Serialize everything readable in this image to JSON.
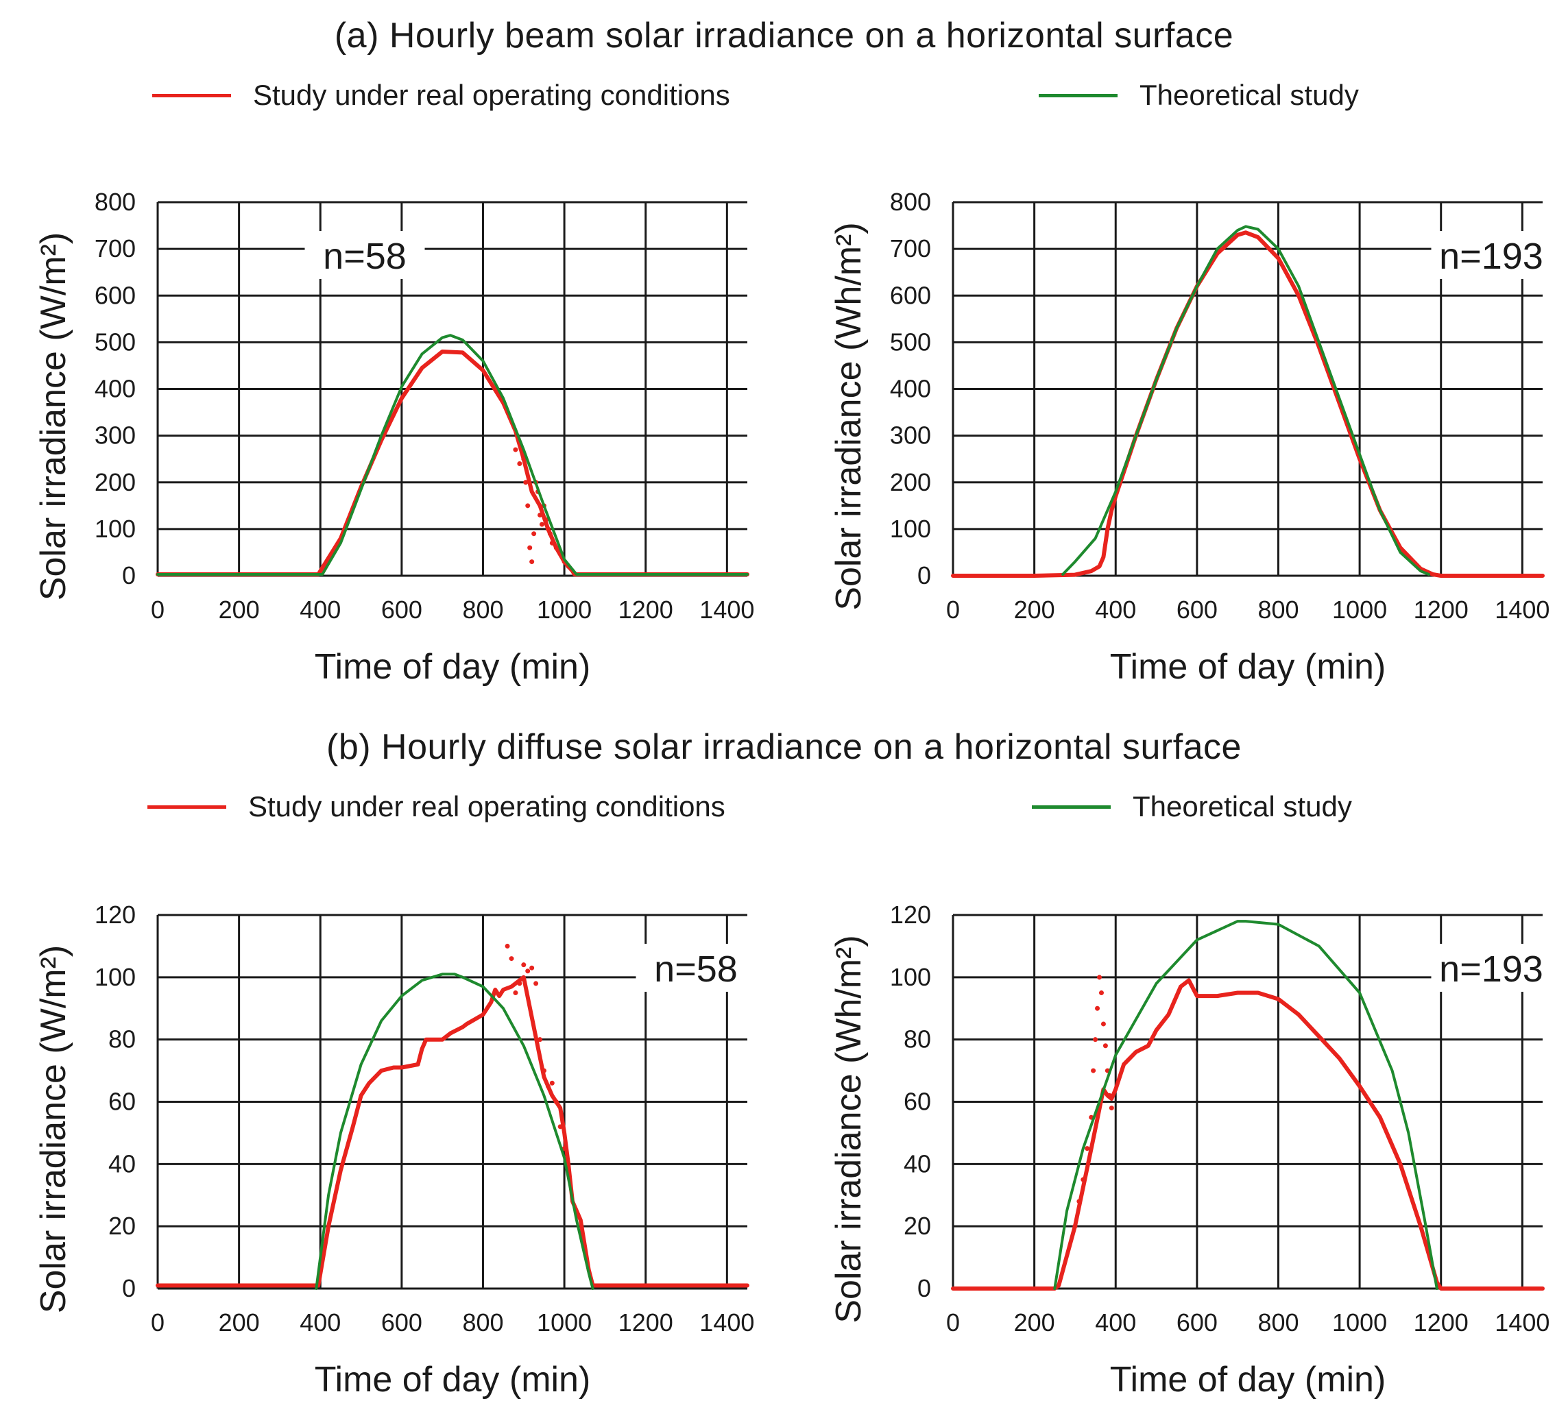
{
  "figure": {
    "section_a_title": "(a) Hourly beam solar irradiance on a horizontal surface",
    "section_b_title": "(b) Hourly diffuse solar irradiance on a horizontal surface",
    "legend_real": "Study under real operating conditions",
    "legend_theoretical": "Theoretical study",
    "colors": {
      "real": "#e8231d",
      "theoretical": "#1e8a2e",
      "grid": "#1a1a1a"
    }
  },
  "chart_data": [
    {
      "id": "a-left",
      "type": "line",
      "title": "",
      "annotation": "n=58",
      "xlabel": "Time of day (min)",
      "ylabel": "Solar irradiance (W/m²)",
      "xlim": [
        0,
        1450
      ],
      "ylim": [
        0,
        800
      ],
      "xticks": [
        0,
        200,
        400,
        600,
        800,
        1000,
        1200,
        1400
      ],
      "yticks": [
        0,
        100,
        200,
        300,
        400,
        500,
        600,
        700,
        800
      ],
      "series": [
        {
          "name": "Study under real operating conditions",
          "style": "real",
          "x": [
            0,
            200,
            395,
            450,
            500,
            550,
            600,
            650,
            700,
            750,
            800,
            850,
            880,
            900,
            920,
            940,
            960,
            980,
            1000,
            1010,
            1020,
            1025,
            1100,
            1200,
            1300,
            1400,
            1450
          ],
          "y": [
            3,
            3,
            3,
            80,
            190,
            290,
            380,
            445,
            480,
            478,
            440,
            370,
            310,
            250,
            180,
            150,
            100,
            60,
            30,
            20,
            10,
            3,
            3,
            3,
            3,
            3,
            3
          ],
          "scatter_x": [
            880,
            890,
            900,
            905,
            910,
            915,
            920,
            925,
            930,
            935,
            940,
            945,
            950,
            955,
            960,
            965,
            970,
            980,
            990,
            1000,
            1010
          ],
          "scatter_y": [
            270,
            240,
            250,
            200,
            150,
            60,
            30,
            90,
            200,
            180,
            130,
            110,
            150,
            120,
            100,
            90,
            70,
            60,
            50,
            30,
            20
          ]
        },
        {
          "name": "Theoretical study",
          "style": "theoretical",
          "x": [
            0,
            200,
            405,
            450,
            500,
            550,
            600,
            650,
            700,
            720,
            750,
            800,
            850,
            900,
            950,
            1000,
            1030,
            1100,
            1200,
            1300,
            1400,
            1450
          ],
          "y": [
            3,
            3,
            3,
            70,
            185,
            300,
            405,
            475,
            510,
            515,
            505,
            460,
            380,
            270,
            150,
            35,
            3,
            3,
            3,
            3,
            3,
            3
          ]
        }
      ]
    },
    {
      "id": "a-right",
      "type": "line",
      "title": "",
      "annotation": "n=193",
      "xlabel": "Time of day (min)",
      "ylabel": "Solar irradiance (Wh/m²)",
      "xlim": [
        0,
        1450
      ],
      "ylim": [
        0,
        800
      ],
      "xticks": [
        0,
        200,
        400,
        600,
        800,
        1000,
        1200,
        1400
      ],
      "yticks": [
        0,
        100,
        200,
        300,
        400,
        500,
        600,
        700,
        800
      ],
      "series": [
        {
          "name": "Study under real operating conditions",
          "style": "real",
          "x": [
            0,
            100,
            200,
            300,
            340,
            360,
            370,
            380,
            390,
            400,
            450,
            500,
            550,
            600,
            650,
            700,
            720,
            750,
            800,
            850,
            900,
            950,
            1000,
            1050,
            1100,
            1150,
            1180,
            1200,
            1300,
            1400,
            1450
          ],
          "y": [
            0,
            0,
            0,
            2,
            10,
            20,
            40,
            100,
            140,
            170,
            300,
            420,
            530,
            620,
            690,
            730,
            735,
            725,
            680,
            600,
            490,
            370,
            250,
            140,
            60,
            15,
            3,
            0,
            0,
            0,
            0
          ]
        },
        {
          "name": "Theoretical study",
          "style": "theoretical",
          "x": [
            270,
            300,
            350,
            400,
            450,
            500,
            550,
            600,
            650,
            700,
            720,
            750,
            800,
            850,
            900,
            950,
            1000,
            1050,
            1100,
            1150,
            1170
          ],
          "y": [
            3,
            30,
            80,
            180,
            300,
            420,
            530,
            620,
            700,
            740,
            748,
            742,
            700,
            620,
            500,
            380,
            260,
            140,
            50,
            10,
            3
          ]
        }
      ]
    },
    {
      "id": "b-left",
      "type": "line",
      "title": "",
      "annotation": "n=58",
      "xlabel": "Time of day (min)",
      "ylabel": "Solar irradiance (W/m²)",
      "xlim": [
        0,
        1450
      ],
      "ylim": [
        0,
        120
      ],
      "xticks": [
        0,
        200,
        400,
        600,
        800,
        1000,
        1200,
        1400
      ],
      "yticks": [
        0,
        20,
        40,
        60,
        80,
        100,
        120
      ],
      "series": [
        {
          "name": "Study under real operating conditions",
          "style": "real",
          "x": [
            0,
            100,
            200,
            300,
            395,
            420,
            450,
            480,
            500,
            520,
            550,
            580,
            600,
            640,
            650,
            660,
            700,
            720,
            750,
            760,
            800,
            820,
            830,
            840,
            850,
            870,
            900,
            950,
            970,
            990,
            1000,
            1010,
            1020,
            1040,
            1060,
            1070,
            1080,
            1100,
            1200,
            1300,
            1400,
            1450
          ],
          "y": [
            1,
            1,
            1,
            1,
            1,
            20,
            38,
            52,
            62,
            66,
            70,
            71,
            71,
            72,
            77,
            80,
            80,
            82,
            84,
            85,
            88,
            92,
            96,
            94,
            96,
            97,
            100,
            68,
            62,
            58,
            50,
            40,
            28,
            22,
            6,
            1,
            1,
            1,
            1,
            1,
            1,
            1
          ],
          "scatter_x": [
            860,
            870,
            880,
            890,
            900,
            910,
            920,
            930,
            940,
            950,
            960,
            970,
            980,
            990,
            1000
          ],
          "scatter_y": [
            110,
            106,
            95,
            98,
            104,
            102,
            103,
            98,
            80,
            70,
            65,
            66,
            60,
            52,
            45
          ]
        },
        {
          "name": "Theoretical study",
          "style": "theoretical",
          "x": [
            390,
            420,
            450,
            500,
            550,
            600,
            650,
            700,
            730,
            750,
            800,
            850,
            900,
            950,
            1000,
            1030,
            1060,
            1070
          ],
          "y": [
            0,
            30,
            50,
            72,
            86,
            94,
            99,
            101,
            101,
            100,
            97,
            90,
            78,
            62,
            42,
            22,
            5,
            0
          ]
        }
      ]
    },
    {
      "id": "b-right",
      "type": "line",
      "title": "",
      "annotation": "n=193",
      "xlabel": "Time of day (min)",
      "ylabel": "Solar irradiance (Wh/m²)",
      "xlim": [
        0,
        1450
      ],
      "ylim": [
        0,
        120
      ],
      "xticks": [
        0,
        200,
        400,
        600,
        800,
        1000,
        1200,
        1400
      ],
      "yticks": [
        0,
        20,
        40,
        60,
        80,
        100,
        120
      ],
      "series": [
        {
          "name": "Study under real operating conditions",
          "style": "real",
          "x": [
            0,
            100,
            200,
            250,
            260,
            300,
            340,
            370,
            380,
            390,
            400,
            420,
            450,
            480,
            500,
            530,
            560,
            580,
            600,
            650,
            700,
            750,
            800,
            850,
            900,
            950,
            1000,
            1050,
            1100,
            1150,
            1190,
            1200,
            1300,
            1400,
            1450
          ],
          "y": [
            0,
            0,
            0,
            0,
            1,
            20,
            45,
            64,
            62,
            61,
            64,
            72,
            76,
            78,
            83,
            88,
            97,
            99,
            94,
            94,
            95,
            95,
            93,
            88,
            81,
            74,
            65,
            55,
            40,
            20,
            2,
            0,
            0,
            0,
            0
          ],
          "scatter_x": [
            300,
            310,
            320,
            330,
            340,
            345,
            350,
            355,
            360,
            365,
            370,
            375,
            380,
            385,
            390
          ],
          "scatter_y": [
            20,
            28,
            35,
            45,
            55,
            70,
            80,
            90,
            100,
            95,
            85,
            78,
            70,
            62,
            58
          ]
        },
        {
          "name": "Theoretical study",
          "style": "theoretical",
          "x": [
            250,
            280,
            320,
            400,
            500,
            600,
            700,
            720,
            800,
            900,
            1000,
            1080,
            1120,
            1160,
            1190
          ],
          "y": [
            0,
            25,
            45,
            75,
            98,
            112,
            118,
            118,
            117,
            110,
            95,
            70,
            50,
            22,
            0
          ]
        }
      ]
    }
  ]
}
